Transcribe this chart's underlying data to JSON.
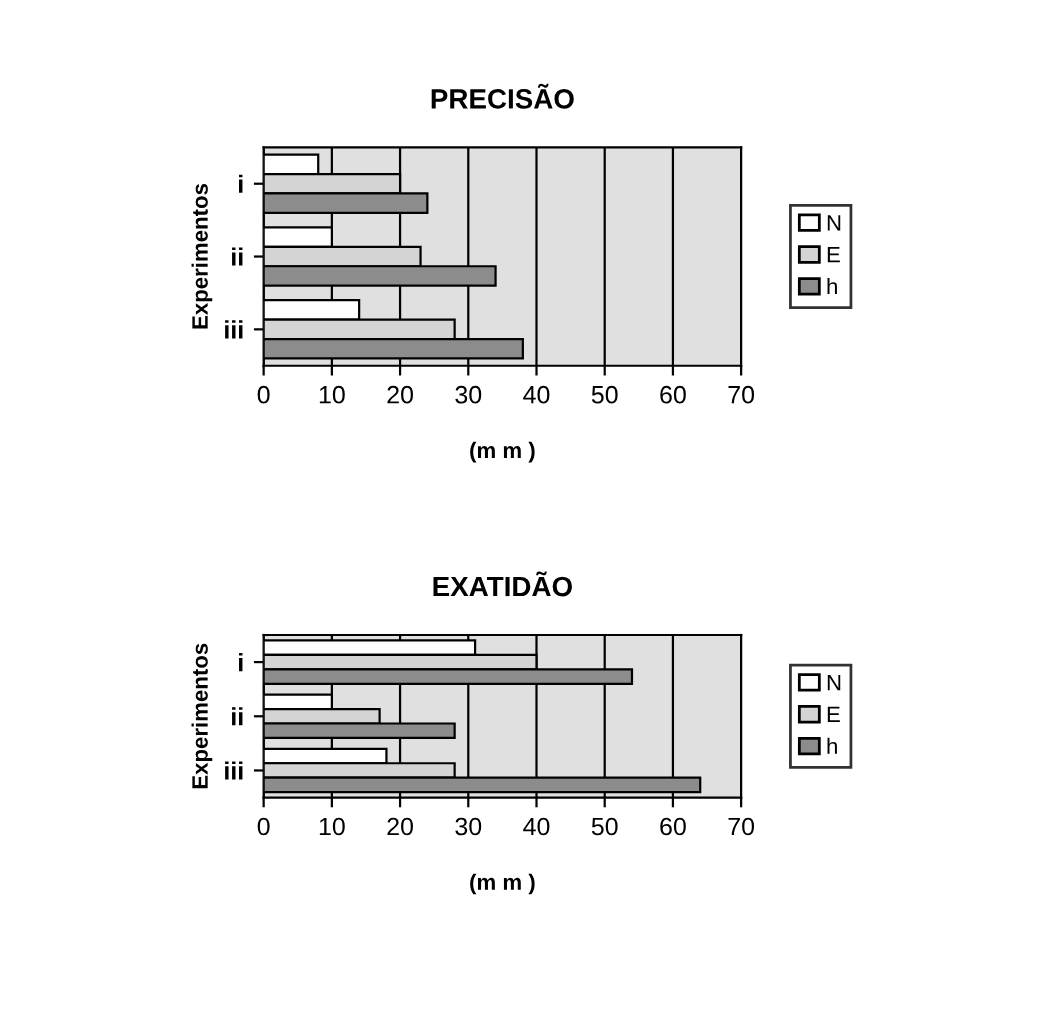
{
  "chart_data": [
    {
      "type": "bar",
      "orientation": "horizontal",
      "title": "PRECISÃO",
      "xlabel": "(m m )",
      "ylabel": "Experimentos",
      "categories": [
        "i",
        "ii",
        "iii"
      ],
      "series": [
        {
          "name": "N",
          "color": "#ffffff",
          "values": [
            8,
            10,
            14
          ]
        },
        {
          "name": "E",
          "color": "#d4d4d4",
          "values": [
            20,
            23,
            28
          ]
        },
        {
          "name": "h",
          "color": "#8c8c8c",
          "values": [
            24,
            34,
            38
          ]
        }
      ],
      "xlim": [
        0,
        70
      ],
      "xticks": [
        0,
        10,
        20,
        30,
        40,
        50,
        60,
        70
      ],
      "grid": "x",
      "legend": "right"
    },
    {
      "type": "bar",
      "orientation": "horizontal",
      "title": "EXATIDÃO",
      "xlabel": "(m m )",
      "ylabel": "Experimentos",
      "categories": [
        "i",
        "ii",
        "iii"
      ],
      "series": [
        {
          "name": "N",
          "color": "#ffffff",
          "values": [
            31,
            10,
            18
          ]
        },
        {
          "name": "E",
          "color": "#d4d4d4",
          "values": [
            40,
            17,
            28
          ]
        },
        {
          "name": "h",
          "color": "#8c8c8c",
          "values": [
            54,
            28,
            64
          ]
        }
      ],
      "xlim": [
        0,
        70
      ],
      "xticks": [
        0,
        10,
        20,
        30,
        40,
        50,
        60,
        70
      ],
      "grid": "x",
      "legend": "right"
    }
  ]
}
